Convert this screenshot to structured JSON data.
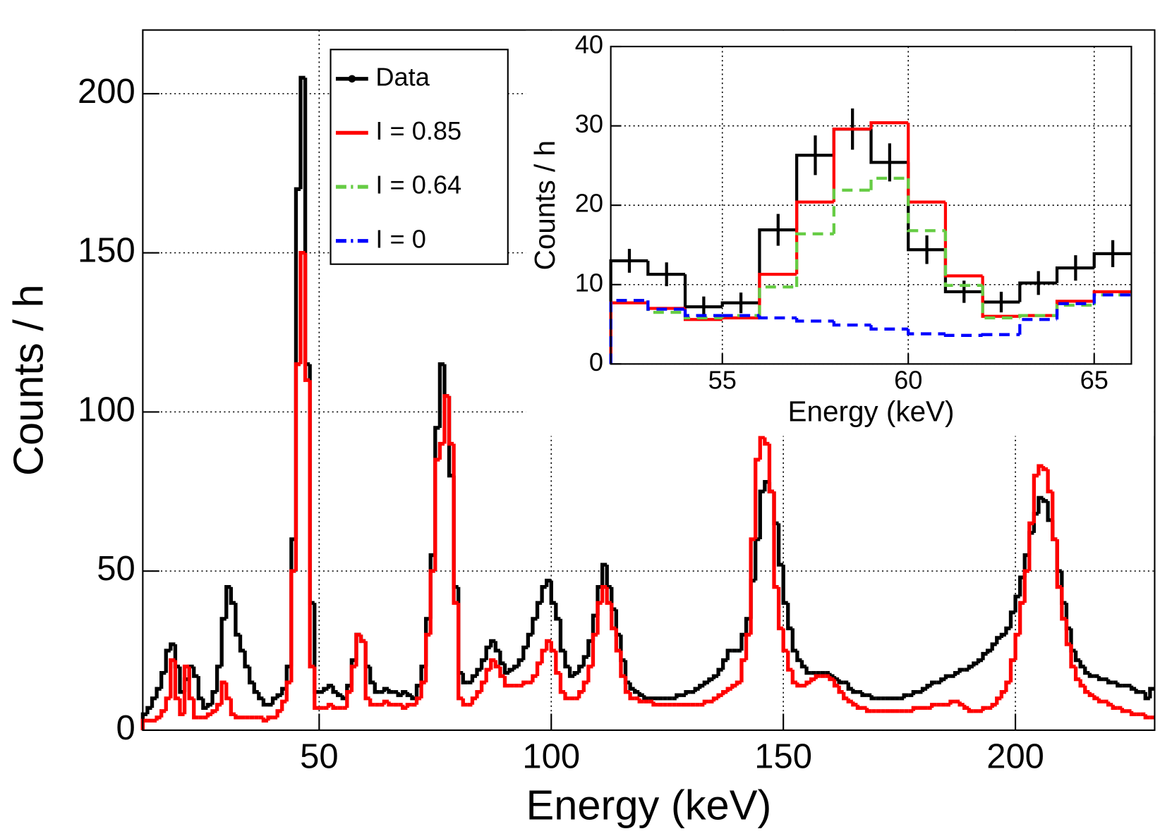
{
  "chart_data": [
    {
      "type": "histogram",
      "xlabel": "Energy (keV)",
      "ylabel": "Counts / h",
      "bins": [
        12,
        13,
        14,
        15,
        16,
        17,
        18,
        19,
        20,
        21,
        22,
        23,
        24,
        25,
        26,
        27,
        28,
        29,
        30,
        31,
        32,
        33,
        34,
        35,
        36,
        37,
        38,
        39,
        40,
        41,
        42,
        43,
        44,
        45,
        46,
        47,
        48,
        49,
        50,
        51,
        52,
        53,
        54,
        55,
        56,
        57,
        58,
        59,
        60,
        61,
        62,
        63,
        64,
        65,
        66,
        67,
        68,
        69,
        70,
        71,
        72,
        73,
        74,
        75,
        76,
        77,
        78,
        79,
        80,
        81,
        82,
        83,
        84,
        85,
        86,
        87,
        88,
        89,
        90,
        91,
        92,
        93,
        94,
        95,
        96,
        97,
        98,
        99,
        100,
        101,
        102,
        103,
        104,
        105,
        106,
        107,
        108,
        109,
        110,
        111,
        112,
        113,
        114,
        115,
        116,
        117,
        118,
        119,
        120,
        121,
        122,
        123,
        124,
        125,
        126,
        127,
        128,
        129,
        130,
        131,
        132,
        133,
        134,
        135,
        136,
        137,
        138,
        139,
        140,
        141,
        142,
        143,
        144,
        145,
        146,
        147,
        148,
        149,
        150,
        151,
        152,
        153,
        154,
        155,
        156,
        157,
        158,
        159,
        160,
        161,
        162,
        163,
        164,
        165,
        166,
        167,
        168,
        169,
        170,
        171,
        172,
        173,
        174,
        175,
        176,
        177,
        178,
        179,
        180,
        181,
        182,
        183,
        184,
        185,
        186,
        187,
        188,
        189,
        190,
        191,
        192,
        193,
        194,
        195,
        196,
        197,
        198,
        199,
        200,
        201,
        202,
        203,
        204,
        205,
        206,
        207,
        208,
        209,
        210,
        211,
        212,
        213,
        214,
        215,
        216,
        217,
        218,
        219,
        220,
        221,
        222,
        223,
        224,
        225,
        226,
        227,
        228,
        229,
        230
      ],
      "xlim": [
        12,
        230
      ],
      "ylim": [
        0,
        220
      ],
      "xticks": [
        50,
        100,
        150,
        200
      ],
      "yticks": [
        0,
        50,
        100,
        150,
        200
      ],
      "grid": true,
      "series": [
        {
          "color": "#000000",
          "values": [
            5,
            7,
            10,
            13,
            18,
            25,
            27,
            20,
            12,
            16,
            20,
            17,
            10,
            7,
            8,
            12,
            20,
            35,
            45,
            40,
            30,
            25,
            20,
            15,
            12,
            10,
            8,
            8,
            10,
            11,
            13,
            20,
            60,
            170,
            205,
            115,
            40,
            12,
            12,
            13,
            14,
            12,
            11,
            10,
            14,
            22,
            30,
            28,
            20,
            15,
            12,
            12,
            13,
            12,
            12,
            11,
            12,
            11,
            10,
            14,
            20,
            35,
            55,
            95,
            115,
            105,
            80,
            45,
            18,
            15,
            15,
            17,
            19,
            22,
            26,
            28,
            25,
            21,
            18,
            19,
            20,
            22,
            26,
            30,
            35,
            40,
            45,
            47,
            40,
            35,
            25,
            20,
            17,
            18,
            20,
            23,
            28,
            36,
            45,
            52,
            45,
            38,
            30,
            22,
            15,
            13,
            12,
            11,
            10,
            10,
            10,
            10,
            10,
            10,
            10,
            11,
            11,
            12,
            12,
            13,
            14,
            15,
            16,
            17,
            19,
            22,
            25,
            25,
            25,
            30,
            35,
            47,
            60,
            75,
            78,
            75,
            65,
            52,
            40,
            32,
            25,
            22,
            20,
            18,
            18,
            18,
            18,
            18,
            17,
            16,
            15,
            15,
            13,
            12,
            12,
            11,
            11,
            10,
            10,
            10,
            10,
            10,
            10,
            10,
            11,
            11,
            12,
            12,
            13,
            14,
            15,
            15,
            16,
            17,
            17,
            18,
            19,
            19,
            20,
            21,
            22,
            24,
            25,
            27,
            29,
            30,
            32,
            37,
            42,
            48,
            55,
            62,
            68,
            73,
            72,
            66,
            60,
            50,
            40,
            32,
            25,
            22,
            20,
            18,
            17,
            17,
            16,
            16,
            15,
            15,
            14,
            14,
            14,
            13,
            12,
            12,
            10,
            13
          ]
        },
        {
          "color": "#ff0000",
          "values": [
            3,
            3,
            3,
            4,
            6,
            10,
            22,
            10,
            5,
            20,
            10,
            4,
            4,
            4,
            5,
            6,
            8,
            15,
            10,
            5,
            4,
            4,
            4,
            4,
            4,
            4,
            3,
            4,
            4,
            6,
            9,
            15,
            50,
            115,
            150,
            110,
            20,
            7,
            7,
            7,
            8,
            7,
            7,
            7,
            12,
            20,
            30,
            28,
            10,
            8,
            8,
            8,
            9,
            8,
            8,
            8,
            7,
            8,
            8,
            10,
            15,
            30,
            50,
            85,
            90,
            105,
            90,
            40,
            10,
            8,
            8,
            10,
            12,
            15,
            19,
            22,
            20,
            17,
            14,
            14,
            14,
            14,
            15,
            15,
            17,
            21,
            25,
            28,
            25,
            18,
            12,
            10,
            10,
            10,
            12,
            15,
            20,
            30,
            40,
            45,
            40,
            32,
            25,
            17,
            12,
            10,
            10,
            9,
            9,
            9,
            8,
            8,
            8,
            8,
            8,
            8,
            8,
            8,
            8,
            8,
            8,
            9,
            9,
            10,
            11,
            12,
            13,
            14,
            15,
            22,
            30,
            60,
            85,
            92,
            90,
            75,
            45,
            32,
            25,
            19,
            15,
            14,
            14,
            15,
            16,
            17,
            17,
            17,
            16,
            14,
            12,
            10,
            9,
            8,
            7,
            7,
            6,
            6,
            6,
            6,
            6,
            6,
            6,
            6,
            6,
            6,
            7,
            7,
            7,
            7,
            8,
            8,
            8,
            8,
            9,
            9,
            8,
            7,
            6,
            6,
            6,
            7,
            7,
            8,
            10,
            12,
            15,
            22,
            30,
            40,
            50,
            65,
            80,
            83,
            82,
            75,
            60,
            45,
            35,
            27,
            20,
            16,
            14,
            12,
            11,
            10,
            9,
            9,
            8,
            7,
            7,
            6,
            6,
            5,
            5,
            5,
            4,
            4
          ]
        }
      ]
    },
    {
      "type": "histogram",
      "xlabel": "Energy (keV)",
      "ylabel": "Counts / h",
      "bins": [
        52,
        53,
        54,
        55,
        56,
        57,
        58,
        59,
        60,
        61,
        62,
        63,
        64,
        65,
        66
      ],
      "xlim": [
        52,
        66
      ],
      "ylim": [
        0,
        40
      ],
      "xticks": [
        55,
        60,
        65
      ],
      "yticks": [
        0,
        10,
        20,
        30,
        40
      ],
      "grid": true,
      "series": [
        {
          "name": "Data",
          "color": "#000000",
          "linestyle": "solid",
          "values": [
            13.0,
            11.3,
            7.2,
            7.7,
            16.9,
            26.3,
            29.6,
            25.4,
            14.4,
            9.1,
            7.8,
            10.2,
            12.1,
            13.9
          ],
          "errors": [
            1.5,
            1.5,
            1.3,
            1.3,
            2.0,
            2.5,
            2.6,
            2.4,
            1.8,
            1.4,
            1.3,
            1.5,
            1.6,
            1.7
          ]
        },
        {
          "name": "I = 0.85",
          "color": "#ff0000",
          "linestyle": "solid",
          "values": [
            7.7,
            7.0,
            5.6,
            5.8,
            11.3,
            20.4,
            29.6,
            30.4,
            20.4,
            11.1,
            6.0,
            6.1,
            7.9,
            9.1
          ]
        },
        {
          "name": "I = 0.64",
          "color": "#66cc44",
          "linestyle": "dashed",
          "values": [
            8.0,
            6.5,
            5.8,
            6.1,
            9.7,
            16.4,
            21.9,
            23.4,
            16.8,
            9.9,
            5.8,
            6.1,
            7.4,
            8.7
          ]
        },
        {
          "name": "I = 0",
          "color": "#0000ff",
          "linestyle": "dashed",
          "values": [
            8.0,
            6.9,
            6.1,
            6.1,
            5.8,
            5.4,
            4.9,
            4.4,
            3.8,
            3.6,
            3.7,
            5.6,
            7.6,
            8.7
          ]
        }
      ]
    }
  ]
}
